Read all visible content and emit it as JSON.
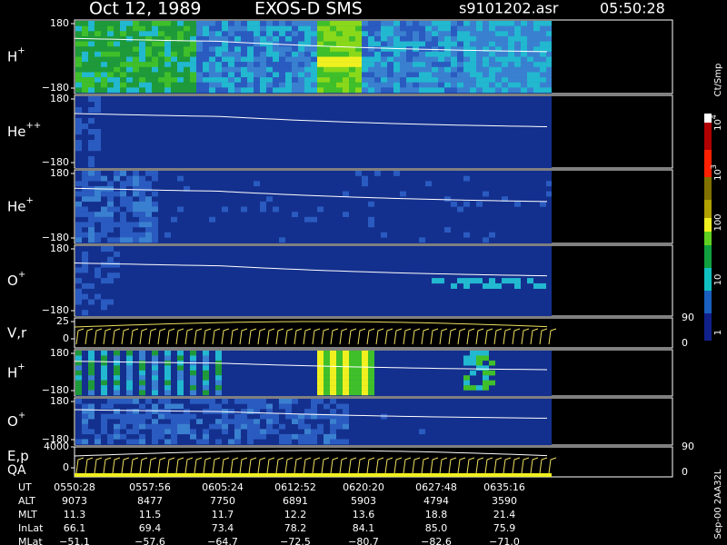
{
  "header": {
    "date": "Oct 12, 1989",
    "title": "EXOS-D SMS",
    "file": "s9101202.asr",
    "time": "05:50:28"
  },
  "panels": [
    {
      "label": "H",
      "sup": "+",
      "ticks": [
        "180",
        "−180"
      ]
    },
    {
      "label": "He",
      "sup": "++",
      "ticks": [
        "180",
        "−180"
      ]
    },
    {
      "label": "He",
      "sup": "+",
      "ticks": [
        "180",
        "−180"
      ]
    },
    {
      "label": "O",
      "sup": "+",
      "ticks": [
        "180",
        "−180"
      ]
    },
    {
      "label": "V,r",
      "ticks": [
        "25",
        "0"
      ],
      "right_ticks": [
        "90",
        "0"
      ]
    },
    {
      "label": "H",
      "sup": "+",
      "ticks": [
        "180",
        "−180"
      ]
    },
    {
      "label": "O",
      "sup": "+",
      "ticks": [
        "180",
        "−180"
      ]
    },
    {
      "label": "E,p",
      "label2": "QA",
      "ticks": [
        "4000",
        "0"
      ],
      "right_ticks": [
        "90",
        "0"
      ]
    }
  ],
  "colorbar": {
    "unit": "Ct/Smp",
    "labels": [
      {
        "base": "10",
        "exp": "4"
      },
      {
        "base": "10",
        "exp": "3"
      },
      {
        "base": "100"
      },
      {
        "base": "10"
      },
      {
        "base": "1"
      }
    ]
  },
  "table": {
    "rows": [
      [
        "UT",
        "0550:28",
        "0557:56",
        "0605:24",
        "0612:52",
        "0620:20",
        "0627:48",
        "0635:16"
      ],
      [
        "ALT",
        "9073",
        "8477",
        "7750",
        "6891",
        "5903",
        "4794",
        "3590"
      ],
      [
        "MLT",
        "11.3",
        "11.5",
        "11.7",
        "12.2",
        "13.6",
        "18.8",
        "21.4"
      ],
      [
        "InLat",
        "66.1",
        "69.4",
        "73.4",
        "78.2",
        "84.1",
        "85.0",
        "75.9"
      ],
      [
        "MLat",
        "−51.1",
        "−57.6",
        "−64.7",
        "−72.5",
        "−80.7",
        "−82.6",
        "−71.0"
      ]
    ]
  },
  "footer_note": "Sep-00 2AA32L"
}
